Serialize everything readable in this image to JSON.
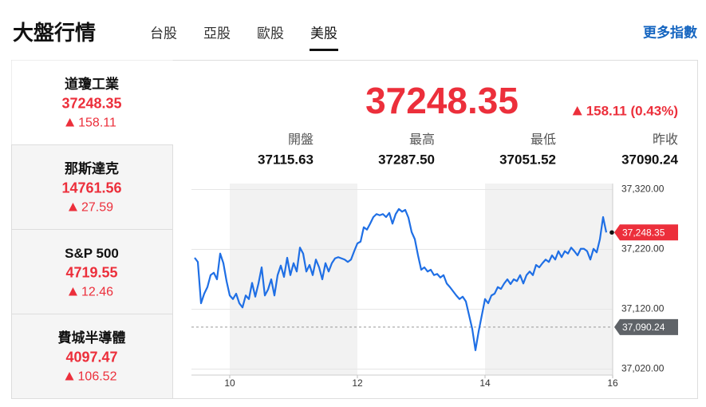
{
  "header": {
    "title": "大盤行情",
    "tabs": [
      {
        "label": "台股",
        "active": false
      },
      {
        "label": "亞股",
        "active": false
      },
      {
        "label": "歐股",
        "active": false
      },
      {
        "label": "美股",
        "active": true
      }
    ],
    "more_link": "更多指數"
  },
  "indices": [
    {
      "name": "道瓊工業",
      "price": "37248.35",
      "change": "158.11",
      "active": true
    },
    {
      "name": "那斯達克",
      "price": "14761.56",
      "change": "27.59",
      "active": false
    },
    {
      "name": "S&P 500",
      "price": "4719.55",
      "change": "12.46",
      "active": false
    },
    {
      "name": "費城半導體",
      "price": "4097.47",
      "change": "106.52",
      "active": false
    }
  ],
  "quote": {
    "price": "37248.35",
    "change": "158.11 (0.43%)",
    "stats": [
      {
        "label": "開盤",
        "value": "37115.63"
      },
      {
        "label": "最高",
        "value": "37287.50"
      },
      {
        "label": "最低",
        "value": "37051.52"
      },
      {
        "label": "昨收",
        "value": "37090.24"
      }
    ]
  },
  "chart_data": {
    "type": "line",
    "color": "#1f6fe5",
    "grid": true,
    "x": [
      9.45,
      9.5,
      9.55,
      9.6,
      9.65,
      9.7,
      9.75,
      9.8,
      9.85,
      9.9,
      9.95,
      10,
      10.05,
      10.1,
      10.15,
      10.2,
      10.25,
      10.3,
      10.35,
      10.4,
      10.45,
      10.5,
      10.55,
      10.6,
      10.65,
      10.7,
      10.75,
      10.8,
      10.85,
      10.9,
      10.95,
      11,
      11.05,
      11.1,
      11.15,
      11.2,
      11.25,
      11.3,
      11.35,
      11.4,
      11.45,
      11.5,
      11.55,
      11.6,
      11.65,
      11.7,
      11.75,
      11.8,
      11.85,
      11.9,
      11.95,
      12,
      12.05,
      12.1,
      12.15,
      12.2,
      12.25,
      12.3,
      12.35,
      12.4,
      12.45,
      12.5,
      12.55,
      12.6,
      12.65,
      12.7,
      12.75,
      12.8,
      12.85,
      12.9,
      12.95,
      13,
      13.05,
      13.1,
      13.15,
      13.2,
      13.25,
      13.3,
      13.35,
      13.4,
      13.45,
      13.5,
      13.55,
      13.6,
      13.65,
      13.7,
      13.75,
      13.8,
      13.85,
      13.9,
      13.95,
      14,
      14.05,
      14.1,
      14.15,
      14.2,
      14.25,
      14.3,
      14.35,
      14.4,
      14.45,
      14.5,
      14.55,
      14.6,
      14.65,
      14.7,
      14.75,
      14.8,
      14.85,
      14.9,
      14.95,
      15,
      15.05,
      15.1,
      15.15,
      15.2,
      15.25,
      15.3,
      15.35,
      15.4,
      15.45,
      15.5,
      15.55,
      15.6,
      15.65,
      15.7,
      15.75,
      15.8,
      15.85,
      15.9
    ],
    "values": [
      37206,
      37199,
      37130,
      37146,
      37157,
      37177,
      37181,
      37170,
      37213,
      37197,
      37167,
      37143,
      37137,
      37146,
      37130,
      37123,
      37143,
      37137,
      37164,
      37141,
      37163,
      37190,
      37143,
      37153,
      37170,
      37143,
      37177,
      37193,
      37174,
      37206,
      37177,
      37197,
      37183,
      37223,
      37213,
      37183,
      37194,
      37177,
      37203,
      37190,
      37170,
      37197,
      37183,
      37197,
      37205,
      37207,
      37205,
      37203,
      37199,
      37203,
      37217,
      37230,
      37233,
      37257,
      37253,
      37263,
      37274,
      37279,
      37277,
      37279,
      37274,
      37281,
      37263,
      37279,
      37287.5,
      37283,
      37286,
      37273,
      37249,
      37237,
      37210,
      37186,
      37190,
      37183,
      37186,
      37177,
      37179,
      37173,
      37177,
      37163,
      37157,
      37150,
      37143,
      37137,
      37141,
      37133,
      37110,
      37087,
      37051.52,
      37083,
      37110,
      37137,
      37130,
      37143,
      37146,
      37157,
      37154,
      37163,
      37170,
      37162,
      37170,
      37167,
      37177,
      37163,
      37177,
      37183,
      37177,
      37194,
      37190,
      37197,
      37203,
      37199,
      37210,
      37203,
      37217,
      37207,
      37217,
      37213,
      37223,
      37217,
      37210,
      37221,
      37221,
      37217,
      37203,
      37221,
      37215,
      37237,
      37274,
      37248.35
    ],
    "xlim": [
      9.4,
      16
    ],
    "xticks": [
      10,
      12,
      14,
      16
    ],
    "ylim": [
      37010,
      37330
    ],
    "yticks": [
      {
        "value": 37020,
        "label": "37,020.00"
      },
      {
        "value": 37120,
        "label": "37,120.00"
      },
      {
        "value": 37220,
        "label": "37,220.00"
      },
      {
        "value": 37320,
        "label": "37,320.00"
      }
    ],
    "reference": {
      "value": 37090.24,
      "label": "37,090.24"
    },
    "last": {
      "value": 37248.35,
      "label": "37,248.35"
    }
  }
}
